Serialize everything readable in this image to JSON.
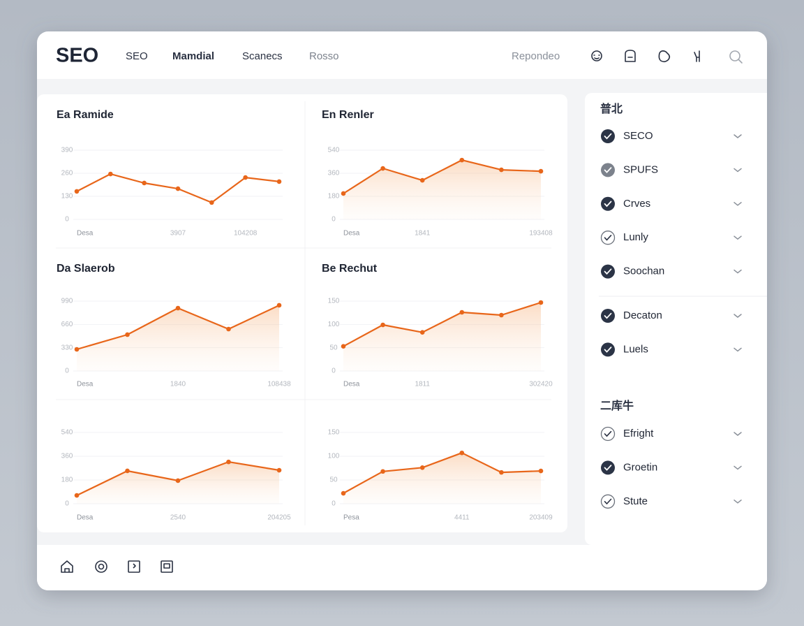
{
  "header": {
    "logo": "SEO",
    "nav": [
      "SEO",
      "Mamdial",
      "Scanecs",
      "Rosso"
    ],
    "right_link": "Repondeo"
  },
  "chart_data": [
    {
      "type": "line",
      "title": "Ea Ramide",
      "categories": [
        "Desa",
        null,
        null,
        "3907",
        null,
        "104208",
        null
      ],
      "values": [
        158,
        256,
        205,
        173,
        95,
        236,
        213
      ],
      "color": "#e8661a",
      "area": false,
      "ylim": [
        0,
        390
      ],
      "yticks": [
        0,
        130,
        260,
        390
      ]
    },
    {
      "type": "line",
      "title": "En Renler",
      "categories": [
        "Desa",
        null,
        "1841",
        null,
        null,
        "193408"
      ],
      "values": [
        202,
        398,
        305,
        463,
        387,
        376
      ],
      "color": "#e8661a",
      "area": true,
      "ylim": [
        0,
        540
      ],
      "yticks": [
        0,
        180,
        360,
        540
      ]
    },
    {
      "type": "line",
      "title": "Da Slaerob",
      "categories": [
        "Desa",
        null,
        "1840",
        null,
        "108438"
      ],
      "values": [
        307,
        515,
        891,
        594,
        931
      ],
      "color": "#e8661a",
      "area": true,
      "ylim": [
        0,
        990
      ],
      "yticks": [
        0,
        330,
        660,
        990
      ]
    },
    {
      "type": "line",
      "title": "Be Rechut",
      "categories": [
        "Desa",
        null,
        "1811",
        null,
        null,
        "302420"
      ],
      "values": [
        53,
        99,
        83,
        126,
        120,
        147
      ],
      "color": "#e8661a",
      "area": true,
      "ylim": [
        0,
        150
      ],
      "yticks": [
        0,
        50,
        100,
        150
      ]
    },
    {
      "type": "line",
      "categories": [
        "Desa",
        null,
        "2540",
        null,
        "204205"
      ],
      "values": [
        63,
        249,
        175,
        317,
        254
      ],
      "color": "#e8661a",
      "area": true,
      "ylim": [
        0,
        540
      ],
      "yticks": [
        0,
        180,
        360,
        540
      ]
    },
    {
      "type": "line",
      "categories": [
        "Pesa",
        null,
        null,
        "4411",
        null,
        "203409"
      ],
      "values": [
        22,
        68,
        76,
        107,
        66,
        69
      ],
      "color": "#e8661a",
      "area": true,
      "ylim": [
        0,
        150
      ],
      "yticks": [
        0,
        50,
        100,
        150
      ]
    }
  ],
  "sidebar": {
    "sections": [
      {
        "title": "普北",
        "items": [
          {
            "label": "SECO",
            "state": "checked"
          },
          {
            "label": "SPUFS",
            "state": "muted"
          },
          {
            "label": "Crves",
            "state": "checked"
          },
          {
            "label": "Lunly",
            "state": "outline"
          },
          {
            "label": "Soochan",
            "state": "checked"
          }
        ]
      },
      {
        "items": [
          {
            "label": "Decaton",
            "state": "checked"
          },
          {
            "label": "Luels",
            "state": "checked"
          }
        ]
      },
      {
        "title": "二库牛",
        "items": [
          {
            "label": "Efright",
            "state": "outline"
          },
          {
            "label": "Groetin",
            "state": "checked"
          },
          {
            "label": "Stute",
            "state": "outline"
          }
        ]
      }
    ]
  }
}
